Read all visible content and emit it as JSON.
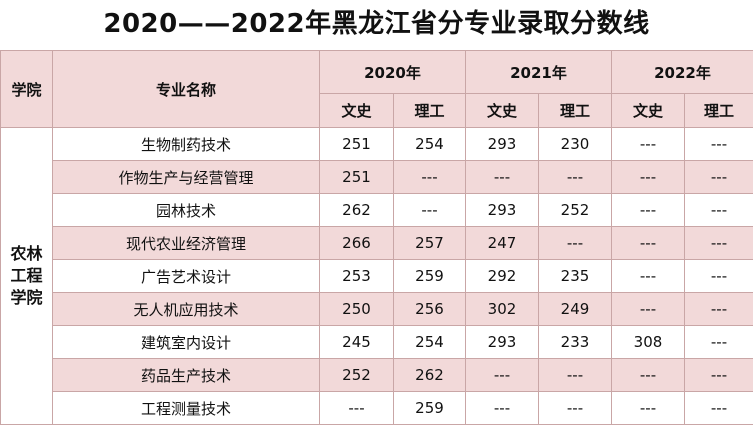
{
  "title": "2020——2022年黑龙江省分专业录取分数线",
  "headers": {
    "college": "学院",
    "major": "专业名称",
    "years": [
      "2020年",
      "2021年",
      "2022年"
    ],
    "sub": [
      "文史",
      "理工",
      "文史",
      "理工",
      "文史",
      "理工"
    ]
  },
  "college_name": "农林工程学院",
  "rows": [
    {
      "major": "生物制药技术",
      "scores": [
        "251",
        "254",
        "293",
        "230",
        "---",
        "---"
      ]
    },
    {
      "major": "作物生产与经营管理",
      "scores": [
        "251",
        "---",
        "---",
        "---",
        "---",
        "---"
      ]
    },
    {
      "major": "园林技术",
      "scores": [
        "262",
        "---",
        "293",
        "252",
        "---",
        "---"
      ]
    },
    {
      "major": "现代农业经济管理",
      "scores": [
        "266",
        "257",
        "247",
        "---",
        "---",
        "---"
      ]
    },
    {
      "major": "广告艺术设计",
      "scores": [
        "253",
        "259",
        "292",
        "235",
        "---",
        "---"
      ]
    },
    {
      "major": "无人机应用技术",
      "scores": [
        "250",
        "256",
        "302",
        "249",
        "---",
        "---"
      ]
    },
    {
      "major": "建筑室内设计",
      "scores": [
        "245",
        "254",
        "293",
        "233",
        "308",
        "---"
      ]
    },
    {
      "major": "药品生产技术",
      "scores": [
        "252",
        "262",
        "---",
        "---",
        "---",
        "---"
      ]
    },
    {
      "major": "工程测量技术",
      "scores": [
        "---",
        "259",
        "---",
        "---",
        "---",
        "---"
      ]
    }
  ],
  "colors": {
    "header_bg": "#f2d9d9",
    "alt_row_bg": "#f2d9d9",
    "border": "#c9a6a6"
  }
}
